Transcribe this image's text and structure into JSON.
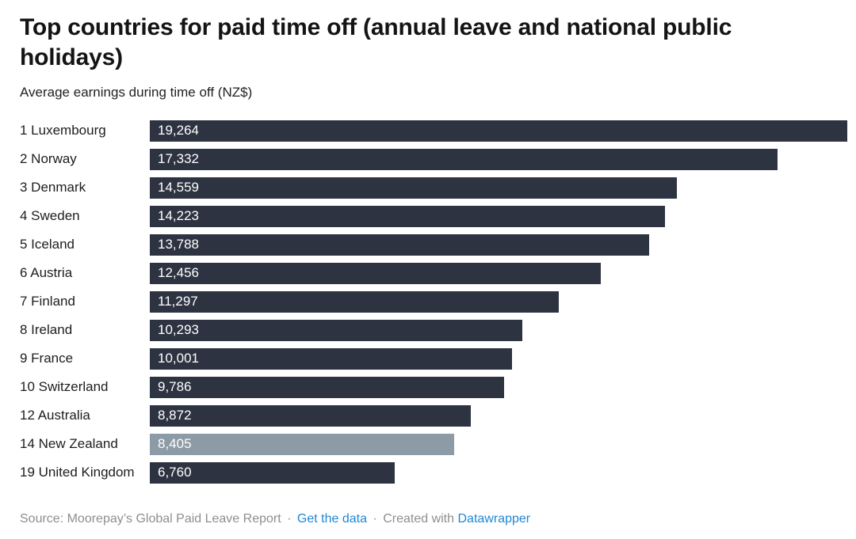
{
  "title": "Top countries for paid time off (annual leave and national public holidays)",
  "subtitle": "Average earnings during time off (NZ$)",
  "chart_data": {
    "type": "bar",
    "orientation": "horizontal",
    "title": "Top countries for paid time off (annual leave and national public holidays)",
    "xlabel": "Average earnings during time off (NZ$)",
    "xlim": [
      0,
      19264
    ],
    "grid": false,
    "legend": false,
    "value_labels_position": "inside-start",
    "categories": [
      "1 Luxembourg",
      "2 Norway",
      "3 Denmark",
      "4 Sweden",
      "5 Iceland",
      "6 Austria",
      "7 Finland",
      "8 Ireland",
      "9 France",
      "10 Switzerland",
      "12 Australia",
      "14 New Zealand",
      "19 United Kingdom"
    ],
    "values": [
      19264,
      17332,
      14559,
      14223,
      13788,
      12456,
      11297,
      10293,
      10001,
      9786,
      8872,
      8405,
      6760
    ],
    "value_labels": [
      "19,264",
      "17,332",
      "14,559",
      "14,223",
      "13,788",
      "12,456",
      "11,297",
      "10,293",
      "10,001",
      "9,786",
      "8,872",
      "8,405",
      "6,760"
    ],
    "highlighted_category": "14 New Zealand",
    "bar_color": "#2d3341",
    "highlight_color": "#8d9ba6"
  },
  "footer": {
    "source_text": "Source: Moorepay’s Global Paid Leave Report",
    "separator": "·",
    "get_data_label": "Get the data",
    "created_with": "Created with",
    "datawrapper_label": "Datawrapper"
  },
  "colors": {
    "background": "#ffffff",
    "bar": "#2d3341",
    "highlight": "#8d9ba6",
    "title_text": "#141414",
    "label_text": "#1d1d1d",
    "value_text": "#ffffff",
    "footer_text": "#8e8e8e",
    "link": "#1d87d4"
  }
}
